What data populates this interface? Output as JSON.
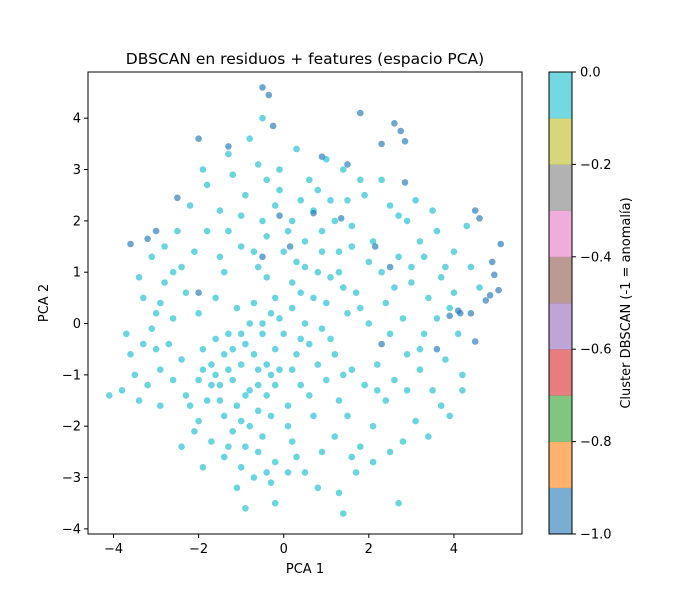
{
  "chart_data": {
    "type": "scatter",
    "title": "DBSCAN en residuos + features (espacio PCA)",
    "xlabel": "PCA 1",
    "ylabel": "PCA 2",
    "xlim": [
      -4.6,
      5.6
    ],
    "ylim": [
      -4.1,
      4.9
    ],
    "xticks": [
      -4,
      -2,
      0,
      2,
      4
    ],
    "yticks": [
      -4,
      -3,
      -2,
      -1,
      0,
      1,
      2,
      3,
      4
    ],
    "grid": false,
    "colorbar": {
      "label": "Cluster DBSCAN (-1 = anomalía)",
      "range": [
        -1.0,
        0.0
      ],
      "ticks": [
        0.0,
        -0.2,
        -0.4,
        -0.6,
        -0.8,
        -1.0
      ],
      "tick_labels": [
        "0.0",
        "−0.2",
        "−0.4",
        "−0.6",
        "−0.8",
        "−1.0"
      ],
      "colors": [
        "#1f77b4",
        "#ff7f0e",
        "#2ca02c",
        "#d62728",
        "#9467bd",
        "#8c564b",
        "#e377c2",
        "#7f7f7f",
        "#bcbd22",
        "#17becf"
      ]
    },
    "series": [
      {
        "cluster": 0,
        "color": "#17becf",
        "points": [
          [
            -1.2,
            -1.1
          ],
          [
            -1.0,
            -0.8
          ],
          [
            -0.8,
            -1.3
          ],
          [
            -1.4,
            -0.6
          ],
          [
            -0.6,
            -0.9
          ],
          [
            -1.1,
            -1.6
          ],
          [
            -0.9,
            -0.4
          ],
          [
            -1.5,
            -1.2
          ],
          [
            -0.4,
            -1.4
          ],
          [
            -1.3,
            -0.9
          ],
          [
            -0.7,
            -0.6
          ],
          [
            -1.0,
            -1.9
          ],
          [
            -0.5,
            -0.2
          ],
          [
            -1.6,
            -0.3
          ],
          [
            -0.3,
            -1.0
          ],
          [
            -1.8,
            -1.5
          ],
          [
            -1.2,
            -2.1
          ],
          [
            -0.2,
            -0.5
          ],
          [
            -0.6,
            -1.7
          ],
          [
            -1.7,
            -0.8
          ],
          [
            -0.8,
            0.0
          ],
          [
            -0.1,
            -0.9
          ],
          [
            -1.4,
            -1.8
          ],
          [
            -0.5,
            -2.2
          ],
          [
            -2.0,
            -1.1
          ],
          [
            -1.9,
            -0.5
          ],
          [
            -0.9,
            -2.4
          ],
          [
            -0.3,
            0.2
          ],
          [
            -1.1,
            0.3
          ],
          [
            -2.2,
            -1.6
          ],
          [
            0.0,
            -0.2
          ],
          [
            0.3,
            -0.6
          ],
          [
            0.2,
            0.3
          ],
          [
            -0.2,
            0.5
          ],
          [
            0.5,
            0.0
          ],
          [
            0.4,
            -1.2
          ],
          [
            0.1,
            -1.6
          ],
          [
            0.6,
            -0.4
          ],
          [
            0.2,
            0.8
          ],
          [
            -0.4,
            0.9
          ],
          [
            0.7,
            0.5
          ],
          [
            0.9,
            -0.1
          ],
          [
            0.3,
            1.2
          ],
          [
            0.8,
            1.0
          ],
          [
            1.0,
            0.4
          ],
          [
            0.0,
            1.4
          ],
          [
            -0.6,
            1.1
          ],
          [
            1.2,
            -0.6
          ],
          [
            1.1,
            0.9
          ],
          [
            0.5,
            1.6
          ],
          [
            -0.4,
            1.7
          ],
          [
            1.3,
            1.4
          ],
          [
            0.9,
            1.8
          ],
          [
            0.2,
            2.0
          ],
          [
            -0.2,
            2.3
          ],
          [
            0.7,
            2.2
          ],
          [
            1.5,
            0.2
          ],
          [
            1.4,
            -1.0
          ],
          [
            1.6,
            1.9
          ],
          [
            1.1,
            2.4
          ],
          [
            -1.0,
            1.5
          ],
          [
            -1.4,
            1.0
          ],
          [
            -1.6,
            0.5
          ],
          [
            -2.0,
            0.2
          ],
          [
            -2.3,
            0.6
          ],
          [
            -2.6,
            1.0
          ],
          [
            -2.9,
            0.4
          ],
          [
            -3.1,
            -0.1
          ],
          [
            -3.3,
            0.5
          ],
          [
            -2.7,
            -0.4
          ],
          [
            -2.4,
            -0.7
          ],
          [
            -2.9,
            -0.9
          ],
          [
            -3.2,
            -1.2
          ],
          [
            -3.5,
            -1.0
          ],
          [
            -3.8,
            -1.3
          ],
          [
            -4.1,
            -1.4
          ],
          [
            -3.6,
            -0.6
          ],
          [
            -2.1,
            1.4
          ],
          [
            -2.5,
            1.8
          ],
          [
            -2.2,
            2.3
          ],
          [
            -1.8,
            2.7
          ],
          [
            -1.5,
            2.2
          ],
          [
            -1.2,
            2.9
          ],
          [
            -0.9,
            2.5
          ],
          [
            -0.6,
            3.1
          ],
          [
            -1.3,
            3.3
          ],
          [
            -0.4,
            2.8
          ],
          [
            -0.8,
            3.6
          ],
          [
            -0.5,
            4.0
          ],
          [
            -1.9,
            3.0
          ],
          [
            -2.8,
            1.5
          ],
          [
            -3.1,
            1.3
          ],
          [
            -3.4,
            0.9
          ],
          [
            -3.0,
            -0.5
          ],
          [
            -2.6,
            -1.1
          ],
          [
            -2.3,
            -1.4
          ],
          [
            -2.0,
            -1.9
          ],
          [
            -1.7,
            -2.3
          ],
          [
            -1.4,
            -2.6
          ],
          [
            -1.0,
            -2.8
          ],
          [
            -0.6,
            -2.5
          ],
          [
            -0.2,
            -2.7
          ],
          [
            0.2,
            -2.3
          ],
          [
            0.5,
            -2.9
          ],
          [
            0.9,
            -2.5
          ],
          [
            1.2,
            -2.2
          ],
          [
            1.5,
            -1.8
          ],
          [
            1.8,
            -2.4
          ],
          [
            2.1,
            -2.0
          ],
          [
            2.4,
            -1.5
          ],
          [
            1.9,
            -1.2
          ],
          [
            2.2,
            -0.8
          ],
          [
            2.6,
            -1.1
          ],
          [
            2.9,
            -0.6
          ],
          [
            3.2,
            -0.9
          ],
          [
            3.5,
            -1.3
          ],
          [
            3.3,
            -0.2
          ],
          [
            2.8,
            0.1
          ],
          [
            2.4,
            0.4
          ],
          [
            2.0,
            0.0
          ],
          [
            1.7,
            0.6
          ],
          [
            2.3,
            1.0
          ],
          [
            2.7,
            1.3
          ],
          [
            3.0,
            0.8
          ],
          [
            3.4,
            0.5
          ],
          [
            3.7,
            0.9
          ],
          [
            3.9,
            0.3
          ],
          [
            4.1,
            -0.2
          ],
          [
            3.8,
            -0.7
          ],
          [
            4.2,
            -1.0
          ],
          [
            4.0,
            1.4
          ],
          [
            3.6,
            1.8
          ],
          [
            3.2,
            1.6
          ],
          [
            2.9,
            2.0
          ],
          [
            2.5,
            2.3
          ],
          [
            2.1,
            1.6
          ],
          [
            1.8,
            2.8
          ],
          [
            1.4,
            3.0
          ],
          [
            1.0,
            3.2
          ],
          [
            0.6,
            2.8
          ],
          [
            0.3,
            3.4
          ],
          [
            -0.1,
            3.0
          ],
          [
            1.9,
            2.5
          ],
          [
            2.3,
            2.8
          ],
          [
            2.7,
            2.1
          ],
          [
            3.1,
            2.4
          ],
          [
            3.5,
            2.2
          ],
          [
            4.3,
            1.9
          ],
          [
            4.4,
            1.1
          ],
          [
            4.6,
            0.7
          ],
          [
            -1.1,
            -3.2
          ],
          [
            -0.7,
            -3.0
          ],
          [
            -0.3,
            -3.1
          ],
          [
            0.1,
            -2.9
          ],
          [
            0.8,
            -3.2
          ],
          [
            1.3,
            -3.3
          ],
          [
            1.7,
            -2.9
          ],
          [
            2.1,
            -2.7
          ],
          [
            2.5,
            -2.5
          ],
          [
            2.8,
            -2.3
          ],
          [
            3.1,
            -1.9
          ],
          [
            3.4,
            -2.2
          ],
          [
            3.7,
            -1.6
          ],
          [
            3.9,
            -1.8
          ],
          [
            4.2,
            -1.3
          ],
          [
            2.7,
            -3.5
          ],
          [
            1.4,
            -3.7
          ],
          [
            -0.2,
            -3.5
          ],
          [
            -0.9,
            -3.6
          ],
          [
            -1.9,
            -2.8
          ],
          [
            -2.4,
            -2.4
          ],
          [
            -2.1,
            -2.1
          ],
          [
            -1.6,
            -1.0
          ],
          [
            -1.3,
            -0.2
          ],
          [
            -0.7,
            0.4
          ],
          [
            -0.1,
            0.1
          ],
          [
            0.4,
            0.6
          ],
          [
            0.8,
            -0.8
          ],
          [
            1.1,
            -0.3
          ],
          [
            1.4,
            0.7
          ],
          [
            -1.5,
            -1.5
          ],
          [
            -0.9,
            -1.4
          ],
          [
            -0.4,
            -0.8
          ],
          [
            -1.2,
            -0.5
          ],
          [
            -0.6,
            -1.2
          ],
          [
            -1.7,
            -1.2
          ],
          [
            -1.0,
            -0.2
          ],
          [
            -0.3,
            -1.8
          ],
          [
            -0.8,
            -2.0
          ],
          [
            -1.9,
            -0.9
          ],
          [
            0.2,
            -0.9
          ],
          [
            0.6,
            -1.4
          ],
          [
            0.1,
            -2.0
          ],
          [
            -0.5,
            0.0
          ],
          [
            1.0,
            -1.1
          ],
          [
            0.7,
            -1.8
          ],
          [
            1.3,
            -1.5
          ],
          [
            1.6,
            -0.9
          ],
          [
            0.4,
            -0.3
          ],
          [
            -0.2,
            -1.2
          ],
          [
            -2.6,
            0.1
          ],
          [
            -2.8,
            0.8
          ],
          [
            -3.3,
            -0.4
          ],
          [
            -3.7,
            -0.2
          ],
          [
            -3.4,
            -1.5
          ],
          [
            -2.9,
            -1.6
          ],
          [
            -3.0,
            0.2
          ],
          [
            -2.4,
            1.1
          ],
          [
            -1.8,
            1.8
          ],
          [
            -1.5,
            1.3
          ],
          [
            0.5,
            1.1
          ],
          [
            0.9,
            1.4
          ],
          [
            1.3,
            1.0
          ],
          [
            1.6,
            1.5
          ],
          [
            2.0,
            1.2
          ],
          [
            1.8,
            0.3
          ],
          [
            2.6,
            0.7
          ],
          [
            3.0,
            1.1
          ],
          [
            3.3,
            1.3
          ],
          [
            3.8,
            1.1
          ],
          [
            -0.5,
            2.0
          ],
          [
            -0.1,
            2.6
          ],
          [
            0.4,
            2.4
          ],
          [
            0.8,
            2.6
          ],
          [
            1.2,
            2.0
          ],
          [
            1.5,
            2.4
          ],
          [
            -1.0,
            2.1
          ],
          [
            -1.3,
            1.8
          ],
          [
            -0.7,
            1.4
          ],
          [
            0.1,
            1.8
          ],
          [
            2.2,
            -1.3
          ],
          [
            2.5,
            -0.2
          ],
          [
            2.9,
            -1.3
          ],
          [
            3.2,
            -0.5
          ],
          [
            3.6,
            0.1
          ],
          [
            4.0,
            0.6
          ],
          [
            1.6,
            -2.6
          ],
          [
            0.3,
            -2.6
          ],
          [
            -0.4,
            -2.9
          ],
          [
            -1.3,
            -2.4
          ]
        ]
      },
      {
        "cluster": -1,
        "color": "#1f77b4",
        "points": [
          [
            -0.5,
            4.6
          ],
          [
            -0.35,
            4.45
          ],
          [
            -0.25,
            3.85
          ],
          [
            -2.0,
            3.6
          ],
          [
            -1.3,
            3.45
          ],
          [
            1.8,
            4.1
          ],
          [
            2.6,
            3.9
          ],
          [
            2.75,
            3.75
          ],
          [
            2.85,
            3.55
          ],
          [
            2.3,
            3.5
          ],
          [
            1.5,
            3.1
          ],
          [
            0.9,
            3.25
          ],
          [
            2.85,
            2.75
          ],
          [
            -0.1,
            2.1
          ],
          [
            4.5,
            2.2
          ],
          [
            4.6,
            2.05
          ],
          [
            5.1,
            1.55
          ],
          [
            4.9,
            1.2
          ],
          [
            4.95,
            0.95
          ],
          [
            5.05,
            0.65
          ],
          [
            4.85,
            0.55
          ],
          [
            4.75,
            0.45
          ],
          [
            4.4,
            0.2
          ],
          [
            4.15,
            0.2
          ],
          [
            -3.2,
            1.65
          ],
          [
            -2.5,
            2.45
          ],
          [
            -3.0,
            1.8
          ],
          [
            -3.6,
            1.55
          ],
          [
            0.7,
            2.15
          ],
          [
            1.35,
            2.05
          ],
          [
            2.15,
            1.5
          ],
          [
            2.5,
            1.1
          ],
          [
            4.1,
            0.25
          ],
          [
            3.9,
            0.15
          ],
          [
            0.15,
            1.5
          ],
          [
            -0.5,
            1.3
          ],
          [
            -2.0,
            0.6
          ],
          [
            2.3,
            -0.4
          ],
          [
            3.6,
            -0.5
          ],
          [
            4.5,
            -0.35
          ]
        ]
      }
    ]
  }
}
